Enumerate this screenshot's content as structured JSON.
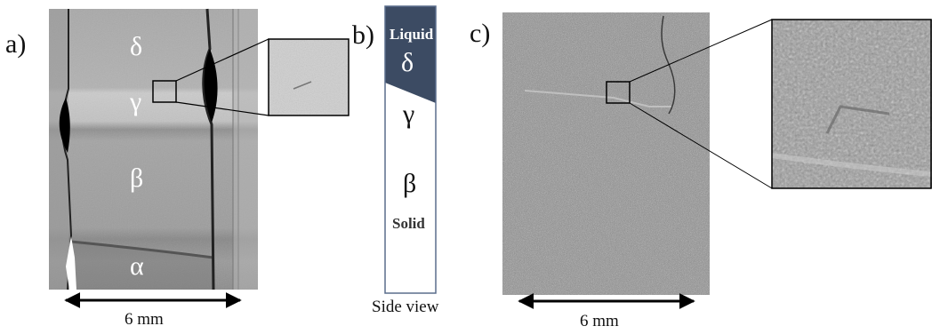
{
  "panel_a": {
    "label": "a)",
    "phase_delta": "δ",
    "phase_gamma": "γ",
    "phase_beta": "β",
    "phase_alpha": "α",
    "scale_text": "6 mm"
  },
  "panel_b": {
    "label": "b)",
    "top_label": "Liquid",
    "phase_delta": "δ",
    "phase_gamma": "γ",
    "phase_beta": "β",
    "bottom_label": "Solid",
    "caption": "Side view"
  },
  "panel_c": {
    "label": "c)",
    "scale_text": "6 mm"
  },
  "colors": {
    "liquid_fill": "#3c4b63",
    "frame": "#5a6d8c"
  }
}
